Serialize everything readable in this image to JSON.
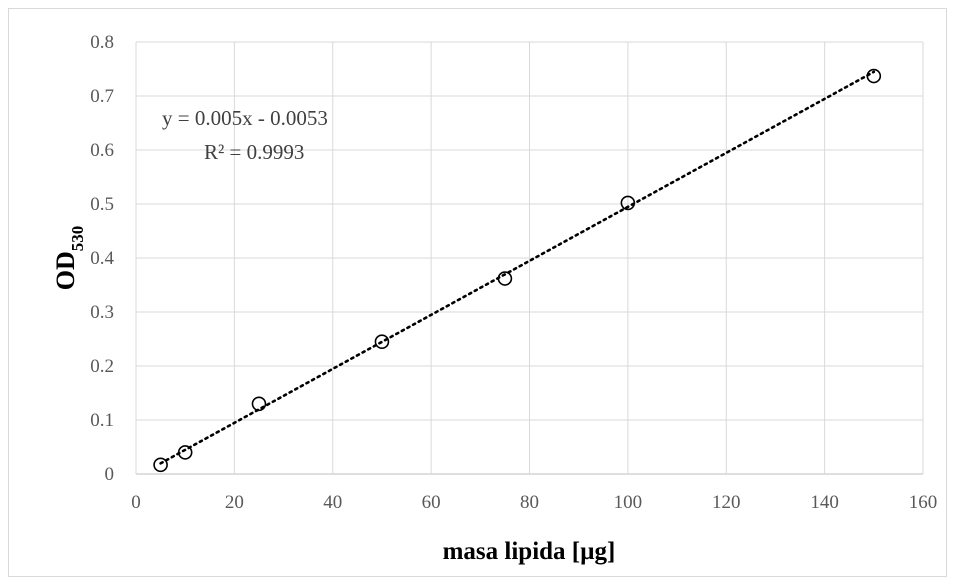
{
  "chart_data": {
    "type": "scatter",
    "title": "",
    "xlabel": "masa lipida [µg]",
    "ylabel": {
      "main": "OD",
      "subscript": "530"
    },
    "xlim": [
      0,
      160
    ],
    "ylim": [
      0,
      0.8
    ],
    "xticks": [
      "0",
      "20",
      "40",
      "60",
      "80",
      "100",
      "120",
      "140",
      "160"
    ],
    "yticks": [
      "0",
      "0.1",
      "0.2",
      "0.3",
      "0.4",
      "0.5",
      "0.6",
      "0.7",
      "0.8"
    ],
    "grid": true,
    "series": [
      {
        "marker": "open-circle",
        "color": "#000000",
        "points": [
          {
            "x": 5,
            "y": 0.017
          },
          {
            "x": 10,
            "y": 0.04
          },
          {
            "x": 25,
            "y": 0.13
          },
          {
            "x": 50,
            "y": 0.245
          },
          {
            "x": 75,
            "y": 0.362
          },
          {
            "x": 100,
            "y": 0.502
          },
          {
            "x": 150,
            "y": 0.737
          }
        ]
      }
    ],
    "trendline": {
      "type": "linear",
      "style": "dotted",
      "slope": 0.005,
      "intercept": -0.0053,
      "equation": "y = 0.005x - 0.0053",
      "r2": "R² = 0.9993"
    }
  }
}
